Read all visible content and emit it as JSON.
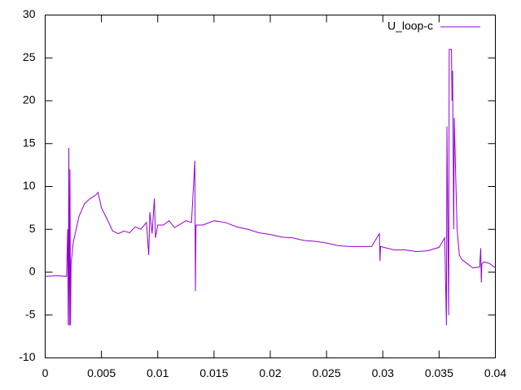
{
  "chart_data": {
    "type": "line",
    "x": [
      0,
      0.001,
      0.0019,
      0.002,
      0.00205,
      0.0021,
      0.00215,
      0.0022,
      0.00225,
      0.0023,
      0.0025,
      0.003,
      0.0035,
      0.004,
      0.0045,
      0.0047,
      0.005,
      0.0055,
      0.006,
      0.0065,
      0.007,
      0.0075,
      0.008,
      0.0085,
      0.009,
      0.0092,
      0.0093,
      0.0095,
      0.0097,
      0.0098,
      0.01,
      0.0105,
      0.011,
      0.0115,
      0.012,
      0.0125,
      0.013,
      0.0133,
      0.01335,
      0.0134,
      0.014,
      0.015,
      0.016,
      0.017,
      0.018,
      0.019,
      0.02,
      0.021,
      0.022,
      0.023,
      0.024,
      0.025,
      0.026,
      0.027,
      0.028,
      0.029,
      0.0297,
      0.02975,
      0.0298,
      0.031,
      0.032,
      0.033,
      0.034,
      0.035,
      0.0355,
      0.03565,
      0.0357,
      0.03585,
      0.0359,
      0.0361,
      0.03615,
      0.0362,
      0.0363,
      0.03635,
      0.0365,
      0.0366,
      0.0368,
      0.037,
      0.0375,
      0.038,
      0.0386,
      0.0387,
      0.03875,
      0.0388,
      0.039,
      0.0395,
      0.04
    ],
    "series": [
      {
        "name": "U_loop-c",
        "color": "#9400d3",
        "values": [
          -0.5,
          -0.4,
          -0.5,
          5,
          -6.2,
          14.5,
          -6.2,
          12,
          -6.2,
          1,
          3.5,
          6.5,
          8,
          8.6,
          9,
          9.3,
          7.5,
          6.2,
          4.8,
          4.5,
          4.8,
          4.6,
          5.3,
          5,
          5.8,
          2,
          7,
          4.5,
          8.6,
          4,
          5.5,
          5.5,
          6,
          5.2,
          5.6,
          6,
          5.8,
          13,
          -2.2,
          5.5,
          5.5,
          6,
          5.8,
          5.3,
          5,
          4.6,
          4.4,
          4.1,
          4,
          3.7,
          3.6,
          3.4,
          3.1,
          3,
          3,
          3,
          4.5,
          1.3,
          3,
          2.6,
          2.6,
          2.4,
          2.5,
          2.9,
          4,
          -6.2,
          17,
          -5,
          26,
          26,
          20,
          23.5,
          5,
          18,
          10,
          5,
          2,
          1.5,
          1,
          0.5,
          0.6,
          2.8,
          -1.2,
          1,
          1.2,
          1,
          0.5
        ]
      }
    ],
    "xlim": [
      0,
      0.04
    ],
    "xticks": [
      0,
      0.005,
      0.01,
      0.015,
      0.02,
      0.025,
      0.03,
      0.035,
      0.04
    ],
    "ylim": [
      -10,
      30
    ],
    "yticks": [
      -10,
      -5,
      0,
      5,
      10,
      15,
      20,
      25,
      30
    ],
    "legend": "top-right"
  }
}
